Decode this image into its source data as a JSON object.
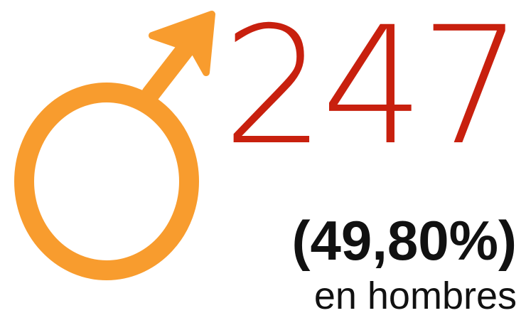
{
  "stat": {
    "value": "247",
    "percentage": "(49,80%)",
    "label": "en hombres"
  }
}
